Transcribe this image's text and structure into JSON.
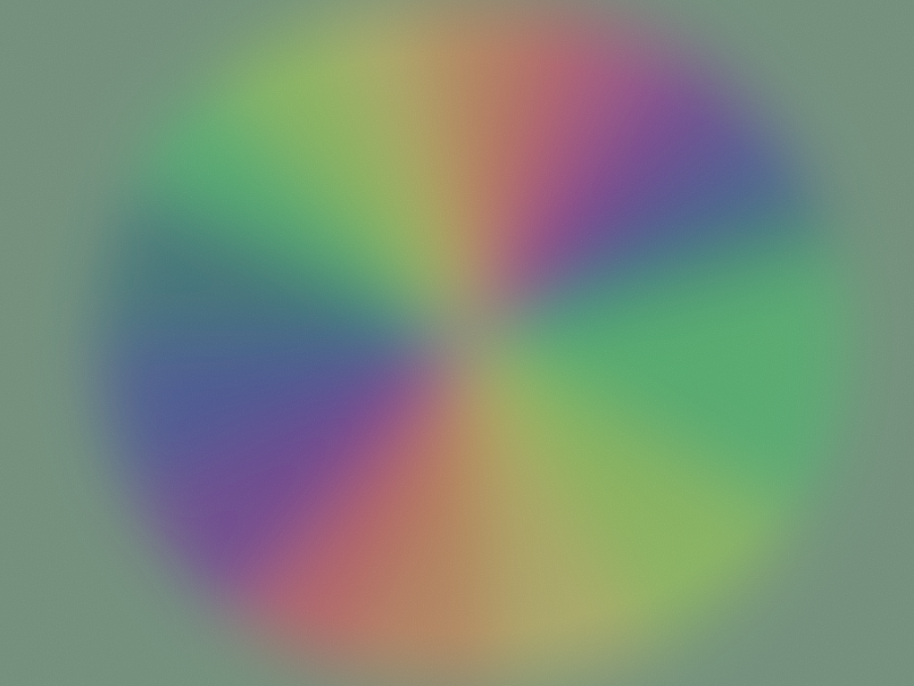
{
  "image": {
    "subject": "swirl-pattern",
    "colors": {
      "background": "#6f9a7c",
      "magenta": "#b8348f",
      "purple": "#6a1fa3",
      "blue": "#2f3fa8",
      "teal": "#1f6f7a",
      "green": "#3fd26a",
      "lime": "#9be04a",
      "yellow": "#d8c85a",
      "orange": "#e8864a",
      "red": "#e64a5a"
    }
  }
}
